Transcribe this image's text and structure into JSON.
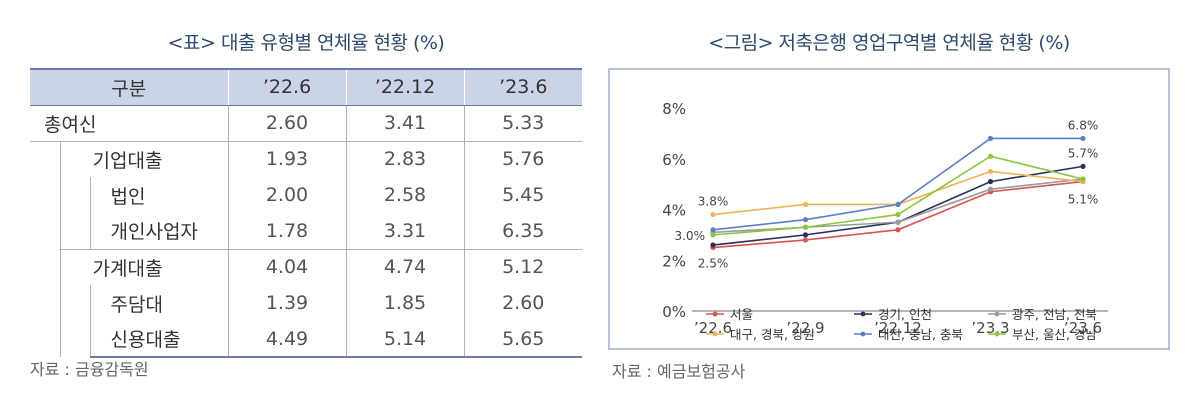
{
  "table": {
    "title": "<표> 대출 유형별 연체율 현황 (%)",
    "headers": [
      "구분",
      "’22.6",
      "’22.12",
      "’23.6"
    ],
    "rows": [
      {
        "label": "총여신",
        "values": [
          "2.60",
          "3.41",
          "5.33"
        ]
      },
      {
        "label": "기업대출",
        "values": [
          "1.93",
          "2.83",
          "5.76"
        ]
      },
      {
        "label": "법인",
        "values": [
          "2.00",
          "2.58",
          "5.45"
        ]
      },
      {
        "label": "개인사업자",
        "values": [
          "1.78",
          "3.31",
          "6.35"
        ]
      },
      {
        "label": "가계대출",
        "values": [
          "4.04",
          "4.74",
          "5.12"
        ]
      },
      {
        "label": "주담대",
        "values": [
          "1.39",
          "1.85",
          "2.60"
        ]
      },
      {
        "label": "신용대출",
        "values": [
          "4.49",
          "5.14",
          "5.65"
        ]
      }
    ],
    "source": "자료 : 금융감독원"
  },
  "chart": {
    "title": "<그림> 저축은행 영업구역별 연체율 현황 (%)",
    "source": "자료 : 예금보험공사"
  },
  "chart_data": {
    "type": "line",
    "categories": [
      "’22.6",
      "’22.9",
      "’22.12",
      "’23.3",
      "’23.6"
    ],
    "ylim": [
      0,
      8
    ],
    "y_ticks": [
      "0%",
      "2%",
      "4%",
      "6%",
      "8%"
    ],
    "series": [
      {
        "name": "서울",
        "color": "#d9534f",
        "values": [
          2.5,
          2.8,
          3.2,
          4.7,
          5.1
        ]
      },
      {
        "name": "경기, 인천",
        "color": "#2b2f5e",
        "values": [
          2.6,
          3.0,
          3.5,
          5.1,
          5.7
        ]
      },
      {
        "name": "광주, 전남, 전북",
        "color": "#9a9a9a",
        "values": [
          3.1,
          3.3,
          3.5,
          4.8,
          5.2
        ]
      },
      {
        "name": "대구, 경북, 강원",
        "color": "#f0b25a",
        "values": [
          3.8,
          4.2,
          4.2,
          5.5,
          5.1
        ]
      },
      {
        "name": "대전, 충남, 충북",
        "color": "#5b7fc0",
        "values": [
          3.2,
          3.6,
          4.2,
          6.8,
          6.8
        ]
      },
      {
        "name": "부산, 울산, 경남",
        "color": "#8cc63f",
        "values": [
          3.0,
          3.3,
          3.8,
          6.1,
          5.2
        ]
      }
    ],
    "annotations": [
      "3.8%",
      "3.0%",
      "2.5%",
      "6.8%",
      "5.7%",
      "5.1%"
    ],
    "legend_position": "bottom"
  }
}
